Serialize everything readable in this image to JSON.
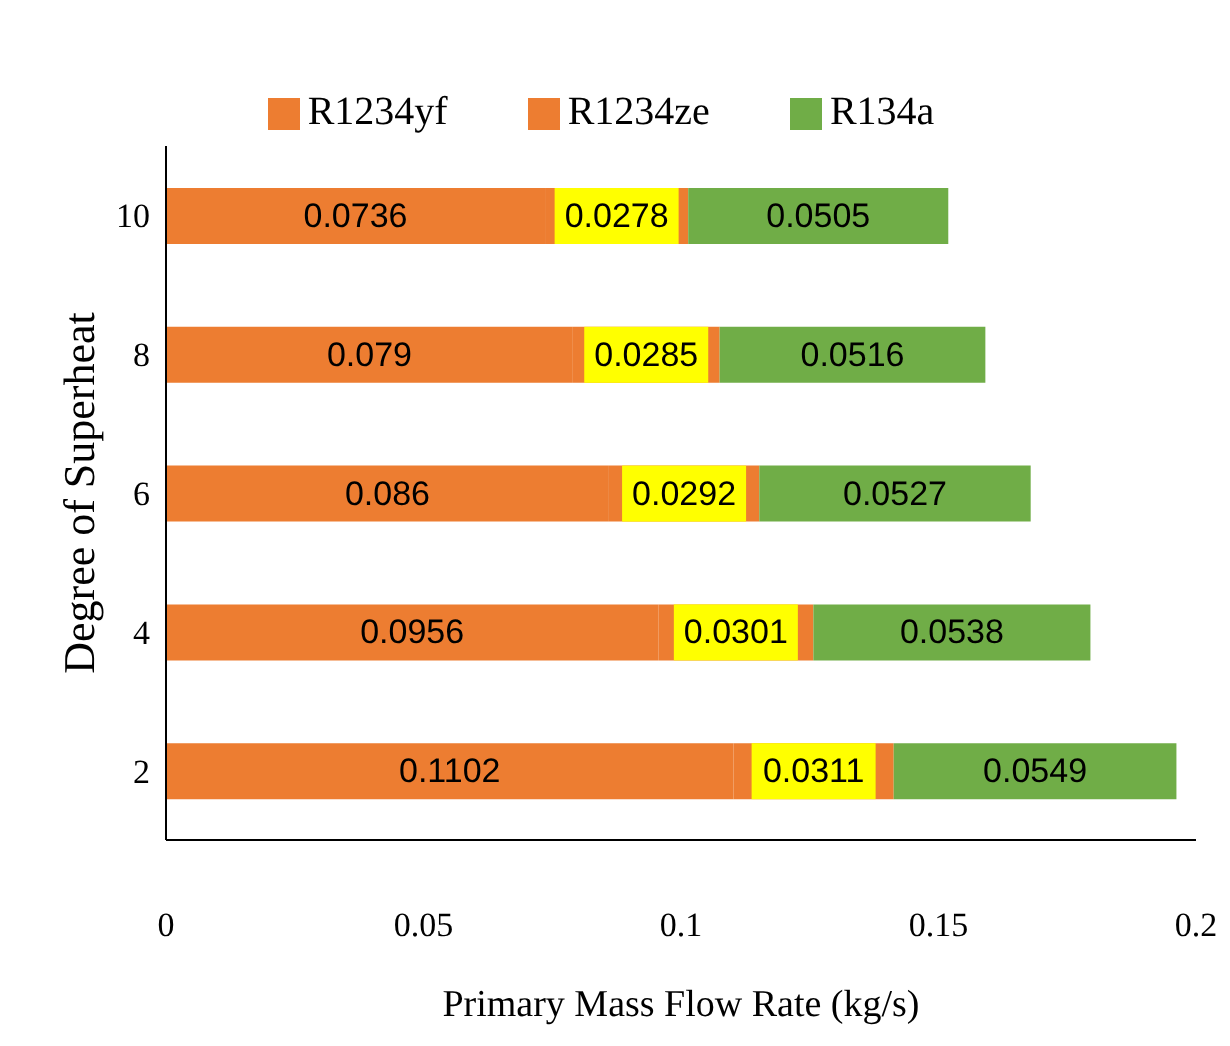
{
  "chart_data": {
    "type": "bar",
    "orientation": "horizontal",
    "stacked": true,
    "xlabel": "Primary Mass Flow Rate (kg/s)",
    "ylabel": "Degree of Superheat",
    "categories": [
      "10",
      "8",
      "6",
      "4",
      "2"
    ],
    "series": [
      {
        "name": "R1234yf",
        "color": "#ed7d31",
        "values": [
          0.0736,
          0.079,
          0.086,
          0.0956,
          0.1102
        ]
      },
      {
        "name": "R1234ze",
        "color": "#ed7d31",
        "values": [
          0.0278,
          0.0285,
          0.0292,
          0.0301,
          0.0311
        ]
      },
      {
        "name": "R134a",
        "color": "#70ad47",
        "values": [
          0.0505,
          0.0516,
          0.0527,
          0.0538,
          0.0549
        ]
      }
    ],
    "xlim": [
      0,
      0.2
    ],
    "xticks": [
      0,
      0.05,
      0.1,
      0.15,
      0.2
    ],
    "grid": false,
    "legend": "top",
    "data_labels": true
  }
}
